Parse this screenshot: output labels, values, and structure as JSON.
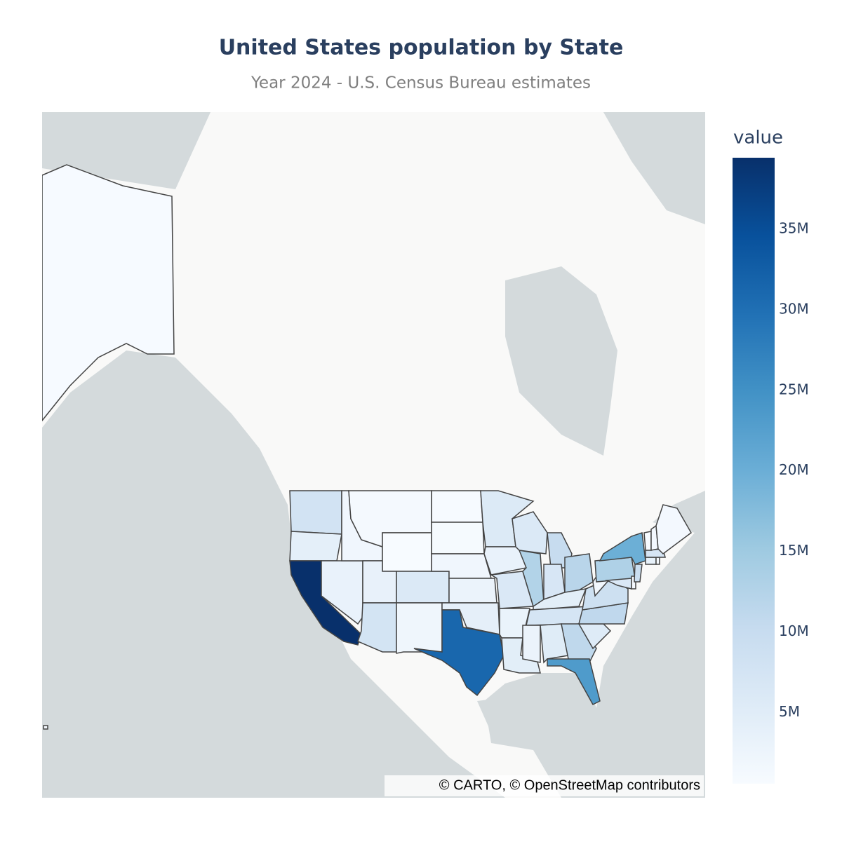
{
  "chart_data": {
    "type": "choropleth",
    "title": "United States population by State",
    "subtitle": "Year 2024 - U.S. Census Bureau estimates",
    "attribution": "© CARTO, © OpenStreetMap contributors",
    "colorbar_title": "value",
    "colorscale": [
      "#f7fbff",
      "#deebf7",
      "#c6dbef",
      "#9ecae1",
      "#6baed6",
      "#4292c6",
      "#2171b5",
      "#08519c",
      "#08306b"
    ],
    "clim": [
      587618,
      39431263
    ],
    "cticks": [
      {
        "value": 5000000,
        "label": "5M"
      },
      {
        "value": 10000000,
        "label": "10M"
      },
      {
        "value": 15000000,
        "label": "15M"
      },
      {
        "value": 20000000,
        "label": "20M"
      },
      {
        "value": 25000000,
        "label": "25M"
      },
      {
        "value": 30000000,
        "label": "30M"
      },
      {
        "value": 35000000,
        "label": "35M"
      }
    ],
    "values": [
      7960000,
      4270000,
      39431263,
      3270000,
      2000000,
      1140000,
      587618,
      3500000,
      7580000,
      5960000,
      2130000,
      800000,
      920000,
      2010000,
      2970000,
      4100000,
      31290000,
      5790000,
      3240000,
      6250000,
      3090000,
      4600000,
      5960000,
      12710000,
      10140000,
      6920000,
      11880000,
      4590000,
      7230000,
      2940000,
      5160000,
      11180000,
      23370000,
      5480000,
      11050000,
      8810000,
      1770000,
      13080000,
      19870000,
      6260000,
      1050000,
      9500000,
      3680000,
      1110000,
      7140000,
      650000,
      1410000,
      1410000,
      740000,
      1450000
    ]
  }
}
